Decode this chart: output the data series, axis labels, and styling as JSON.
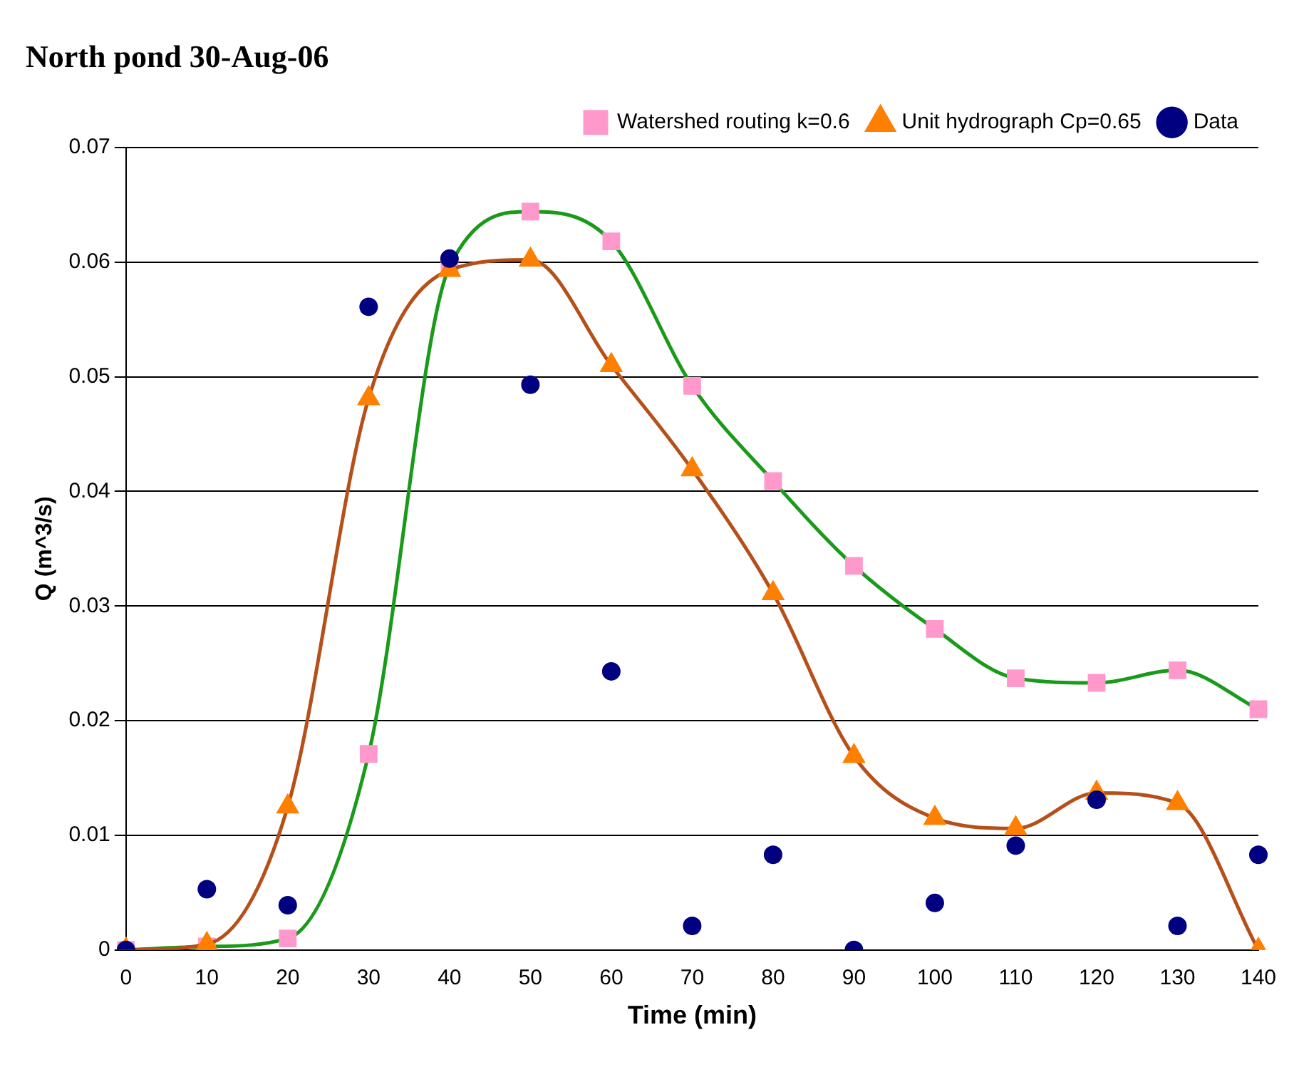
{
  "chart_data": {
    "type": "line",
    "title": "North pond 30-Aug-06",
    "xlabel": "Time (min)",
    "ylabel": "Q (m^3/s)",
    "categories": [
      "0",
      "10",
      "20",
      "30",
      "40",
      "50",
      "60",
      "70",
      "80",
      "90",
      "100",
      "110",
      "120",
      "130",
      "140"
    ],
    "series": [
      {
        "name": "Watershed routing k=0.6",
        "type": "line",
        "marker": "square",
        "color": "#1a9a1a",
        "values": [
          0,
          0.0003,
          0.001,
          0.0171,
          0.0596,
          0.0644,
          0.0618,
          0.0492,
          0.0409,
          0.0335,
          0.028,
          0.0237,
          0.0233,
          0.0244,
          0.021
        ]
      },
      {
        "name": "Unit hydrograph Cp=0.65",
        "type": "line",
        "marker": "triangle",
        "color": "#b5501a",
        "values": [
          0,
          0.0005,
          0.0125,
          0.0481,
          0.0593,
          0.0602,
          0.051,
          0.0419,
          0.0311,
          0.0169,
          0.0115,
          0.0106,
          0.0137,
          0.0128,
          0
        ]
      },
      {
        "name": "Data",
        "type": "scatter",
        "marker": "circle",
        "color": "#000080",
        "values": [
          0,
          0.0053,
          0.0039,
          0.0561,
          0.0603,
          0.0493,
          0.0243,
          0.0021,
          0.0083,
          0,
          0.0041,
          0.0091,
          0.0131,
          0.0021,
          0.0083
        ]
      }
    ],
    "ylim": [
      0,
      0.07
    ],
    "yticks": [
      0,
      0.01,
      0.02,
      0.03,
      0.04,
      0.05,
      0.06,
      0.07
    ],
    "grid": "y",
    "legend": "top right"
  }
}
